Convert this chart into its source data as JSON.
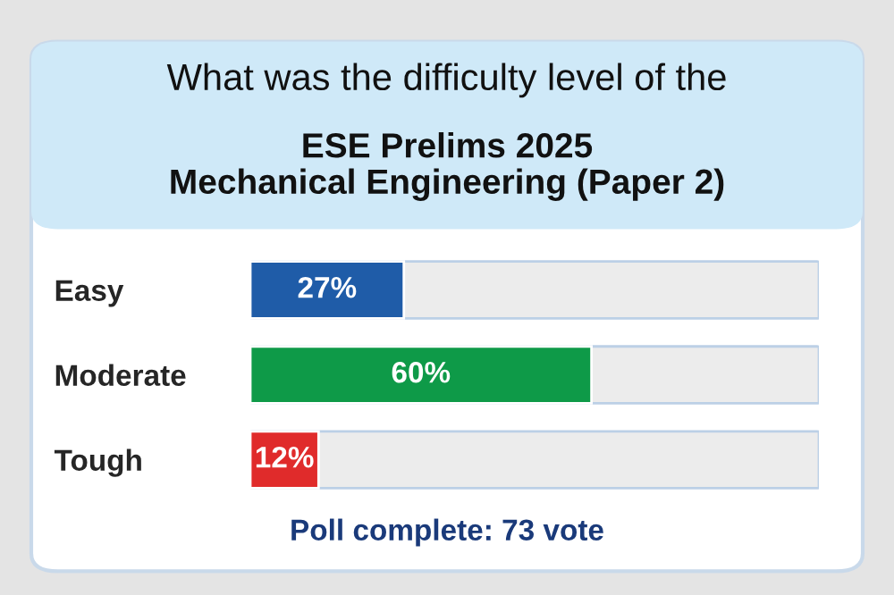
{
  "chart_data": {
    "type": "bar",
    "orientation": "horizontal",
    "title": "What was the difficulty level of the",
    "subtitle": "ESE Prelims 2025\nMechanical Engineering (Paper 2)",
    "categories": [
      "Easy",
      "Moderate",
      "Tough"
    ],
    "values": [
      27,
      60,
      12
    ],
    "colors": [
      "#1f5ca8",
      "#0e9a48",
      "#e02b2b"
    ],
    "value_labels": [
      "27%",
      "60%",
      "12%"
    ],
    "xlim": [
      0,
      100
    ],
    "tick_labels": "y",
    "annotations": [
      "Poll complete: 73 vote"
    ]
  }
}
